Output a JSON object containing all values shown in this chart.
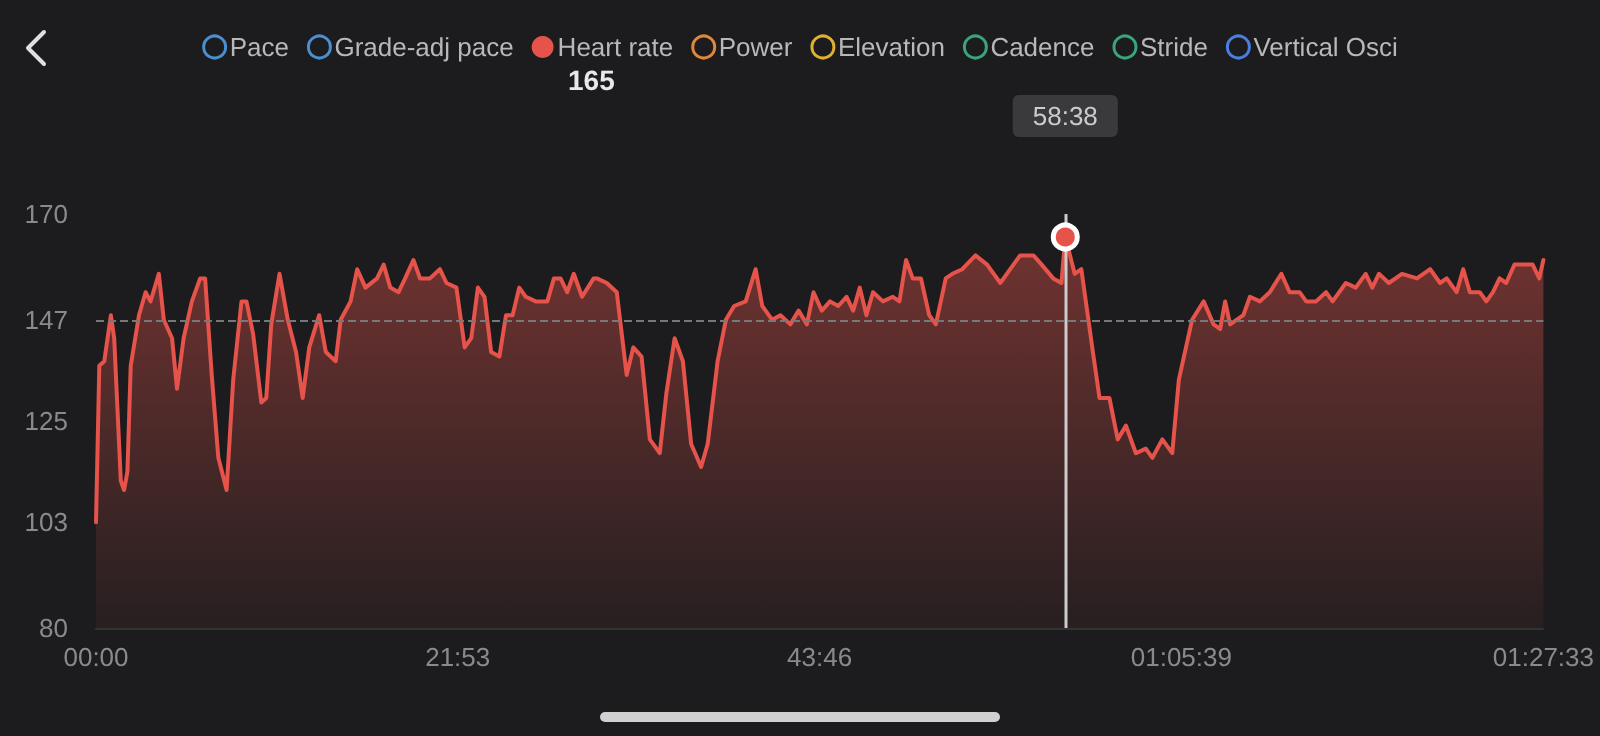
{
  "chart_data": {
    "type": "area",
    "x": [
      0,
      0.2,
      0.5,
      0.9,
      1.1,
      1.5,
      1.7,
      1.9,
      2.1,
      2.6,
      3.0,
      3.3,
      3.8,
      4.1,
      4.6,
      4.9,
      5.3,
      5.8,
      6.3,
      6.6,
      7.0,
      7.4,
      7.9,
      8.3,
      8.8,
      9.1,
      9.5,
      10.0,
      10.3,
      10.6,
      11.1,
      11.6,
      12.1,
      12.5,
      12.9,
      13.5,
      13.9,
      14.5,
      14.8,
      15.4,
      15.8,
      16.3,
      17.0,
      17.4,
      17.8,
      18.3,
      18.7,
      19.2,
      19.6,
      20.2,
      20.8,
      21.2,
      21.8,
      22.3,
      22.7,
      23.1,
      23.5,
      23.9,
      24.4,
      24.8,
      25.2,
      25.6,
      26.0,
      26.6,
      27.3,
      27.7,
      28.1,
      28.5,
      28.9,
      29.4,
      30.1,
      30.3,
      30.9,
      31.5,
      32.1,
      32.5,
      33.0,
      33.5,
      34.1,
      34.5,
      35.0,
      35.5,
      36.0,
      36.6,
      37.0,
      37.6,
      38.1,
      38.6,
      39.3,
      39.9,
      40.3,
      40.9,
      41.4,
      42.0,
      42.5,
      43.0,
      43.4,
      43.9,
      44.4,
      44.9,
      45.4,
      45.8,
      46.2,
      46.6,
      47.0,
      47.6,
      48.2,
      48.6,
      49.0,
      49.4,
      49.9,
      50.4,
      50.8,
      51.4,
      51.8,
      52.4,
      53.2,
      53.9,
      54.7,
      55.3,
      55.9,
      56.7,
      57.2,
      57.9,
      58.4,
      58.63,
      59.2,
      59.6,
      60.3,
      60.7,
      61.3,
      61.8,
      62.3,
      62.9,
      63.5,
      63.9,
      64.5,
      65.1,
      65.5,
      66.3,
      67.0,
      67.6,
      68.0,
      68.3,
      68.6,
      69.4,
      69.8,
      70.4,
      71.0,
      71.7,
      72.2,
      72.8,
      73.2,
      73.8,
      74.4,
      74.8,
      75.6,
      76.2,
      76.8,
      77.2,
      77.6,
      78.2,
      79.0,
      79.9,
      80.7,
      81.3,
      81.7,
      82.3,
      82.7,
      83.1,
      83.7,
      84.1,
      84.5,
      84.9,
      85.3,
      85.8,
      86.3,
      86.9,
      87.3,
      87.55
    ],
    "series": [
      {
        "name": "Pace",
        "color": "#4a8fcf",
        "values": [
          null,
          null,
          null,
          null,
          null,
          null,
          null,
          null,
          null,
          null,
          null,
          null,
          null,
          null,
          null,
          null,
          null,
          null,
          null,
          null,
          null,
          null,
          null,
          null,
          null,
          null,
          null,
          null,
          null,
          null,
          null,
          null,
          null,
          null,
          null,
          null,
          null,
          null,
          null,
          null,
          null,
          null,
          null,
          null,
          null,
          null,
          null,
          null,
          null,
          null,
          null,
          null,
          null,
          null,
          null,
          null,
          null,
          null,
          null,
          null,
          null,
          null,
          null,
          null,
          null,
          null,
          null,
          null,
          null,
          null,
          null,
          null,
          null,
          null,
          null,
          null,
          null,
          null,
          null,
          null,
          null,
          null,
          null,
          null,
          null,
          null,
          null,
          null,
          null,
          null,
          null,
          null,
          null,
          null,
          null,
          null,
          null,
          null,
          null,
          null,
          null,
          null,
          null,
          null,
          null,
          null,
          null,
          null,
          null,
          null,
          null,
          null,
          null,
          null,
          null,
          null,
          null,
          null,
          null,
          null,
          null,
          null,
          null,
          null,
          null,
          null,
          null,
          null,
          null,
          null,
          null,
          null,
          null,
          null,
          null,
          null,
          null,
          null,
          null,
          null,
          null,
          null,
          null,
          null,
          null,
          null,
          null,
          null,
          null,
          null,
          null,
          null,
          null,
          null,
          null,
          null,
          null,
          null,
          null,
          null,
          null,
          null,
          null,
          null,
          null,
          null,
          null,
          null,
          null,
          null,
          null,
          null,
          null,
          null,
          null,
          null,
          null,
          null,
          null,
          null
        ]
      },
      {
        "name": "Grade-adj pace",
        "color": "#4a8fcf",
        "values": [
          null,
          null,
          null,
          null,
          null,
          null,
          null,
          null,
          null,
          null,
          null,
          null,
          null,
          null,
          null,
          null,
          null,
          null,
          null,
          null,
          null,
          null,
          null,
          null,
          null,
          null,
          null,
          null,
          null,
          null,
          null,
          null,
          null,
          null,
          null,
          null,
          null,
          null,
          null,
          null,
          null,
          null,
          null,
          null,
          null,
          null,
          null,
          null,
          null,
          null,
          null,
          null,
          null,
          null,
          null,
          null,
          null,
          null,
          null,
          null,
          null,
          null,
          null,
          null,
          null,
          null,
          null,
          null,
          null,
          null,
          null,
          null,
          null,
          null,
          null,
          null,
          null,
          null,
          null,
          null,
          null,
          null,
          null,
          null,
          null,
          null,
          null,
          null,
          null,
          null,
          null,
          null,
          null,
          null,
          null,
          null,
          null,
          null,
          null,
          null,
          null,
          null,
          null,
          null,
          null,
          null,
          null,
          null,
          null,
          null,
          null,
          null,
          null,
          null,
          null,
          null,
          null,
          null,
          null,
          null,
          null,
          null,
          null,
          null,
          null,
          null,
          null,
          null,
          null,
          null,
          null,
          null,
          null,
          null,
          null,
          null,
          null,
          null,
          null,
          null,
          null,
          null,
          null,
          null,
          null,
          null,
          null,
          null,
          null,
          null,
          null,
          null,
          null,
          null,
          null,
          null,
          null,
          null,
          null,
          null,
          null,
          null,
          null,
          null,
          null,
          null,
          null,
          null,
          null,
          null,
          null,
          null,
          null,
          null,
          null,
          null,
          null,
          null,
          null,
          null
        ]
      },
      {
        "name": "Heart rate",
        "color": "#e5534b",
        "values": [
          103,
          137,
          138,
          148,
          143,
          112,
          110,
          114,
          137,
          148,
          153,
          151,
          157,
          147,
          143,
          132,
          143,
          151,
          156,
          156,
          135,
          117,
          110,
          134,
          151,
          151,
          144,
          129,
          130,
          146,
          157,
          147,
          140,
          130,
          141,
          148,
          140,
          138,
          147,
          151,
          158,
          154,
          156,
          159,
          154,
          153,
          156,
          160,
          156,
          156,
          158,
          155,
          154,
          141,
          143,
          154,
          152,
          140,
          139,
          148,
          148,
          154,
          152,
          151,
          151,
          156,
          156,
          153,
          157,
          152,
          156,
          156,
          155,
          153,
          135,
          141,
          139,
          121,
          118,
          131,
          143,
          138,
          120,
          115,
          120,
          138,
          147,
          150,
          151,
          158,
          150,
          147,
          148,
          146,
          149,
          146,
          153,
          149,
          151,
          150,
          152,
          149,
          154,
          148,
          153,
          151,
          152,
          151,
          160,
          156,
          156,
          148,
          146,
          156,
          157,
          158,
          161,
          159,
          155,
          158,
          161,
          161,
          159,
          156,
          155,
          165,
          157,
          158,
          140,
          130,
          130,
          121,
          124,
          118,
          119,
          117,
          121,
          118,
          134,
          147,
          151,
          146,
          145,
          151,
          146,
          148,
          152,
          151,
          153,
          157,
          153,
          153,
          151,
          151,
          153,
          151,
          155,
          154,
          157,
          154,
          157,
          155,
          157,
          156,
          158,
          155,
          156,
          153,
          158,
          153,
          153,
          151,
          153,
          156,
          155,
          159,
          159,
          159,
          156,
          160
        ]
      },
      {
        "name": "Power",
        "color": "#e0883a",
        "values": [
          null,
          null,
          null,
          null,
          null,
          null,
          null,
          null,
          null,
          null,
          null,
          null,
          null,
          null,
          null,
          null,
          null,
          null,
          null,
          null,
          null,
          null,
          null,
          null,
          null,
          null,
          null,
          null,
          null,
          null,
          null,
          null,
          null,
          null,
          null,
          null,
          null,
          null,
          null,
          null,
          null,
          null,
          null,
          null,
          null,
          null,
          null,
          null,
          null,
          null,
          null,
          null,
          null,
          null,
          null,
          null,
          null,
          null,
          null,
          null,
          null,
          null,
          null,
          null,
          null,
          null,
          null,
          null,
          null,
          null,
          null,
          null,
          null,
          null,
          null,
          null,
          null,
          null,
          null,
          null,
          null,
          null,
          null,
          null,
          null,
          null,
          null,
          null,
          null,
          null,
          null,
          null,
          null,
          null,
          null,
          null,
          null,
          null,
          null,
          null,
          null,
          null,
          null,
          null,
          null,
          null,
          null,
          null,
          null,
          null,
          null,
          null,
          null,
          null,
          null,
          null,
          null,
          null,
          null,
          null,
          null,
          null,
          null,
          null,
          null,
          null,
          null,
          null,
          null,
          null,
          null,
          null,
          null,
          null,
          null,
          null,
          null,
          null,
          null,
          null,
          null,
          null,
          null,
          null,
          null,
          null,
          null,
          null,
          null,
          null,
          null,
          null,
          null,
          null,
          null,
          null,
          null,
          null,
          null,
          null,
          null,
          null,
          null,
          null,
          null,
          null,
          null,
          null,
          null,
          null,
          null,
          null,
          null,
          null,
          null,
          null,
          null,
          null,
          null,
          null
        ]
      },
      {
        "name": "Elevation",
        "color": "#e0b030",
        "values": [
          null,
          null,
          null,
          null,
          null,
          null,
          null,
          null,
          null,
          null,
          null,
          null,
          null,
          null,
          null,
          null,
          null,
          null,
          null,
          null,
          null,
          null,
          null,
          null,
          null,
          null,
          null,
          null,
          null,
          null,
          null,
          null,
          null,
          null,
          null,
          null,
          null,
          null,
          null,
          null,
          null,
          null,
          null,
          null,
          null,
          null,
          null,
          null,
          null,
          null,
          null,
          null,
          null,
          null,
          null,
          null,
          null,
          null,
          null,
          null,
          null,
          null,
          null,
          null,
          null,
          null,
          null,
          null,
          null,
          null,
          null,
          null,
          null,
          null,
          null,
          null,
          null,
          null,
          null,
          null,
          null,
          null,
          null,
          null,
          null,
          null,
          null,
          null,
          null,
          null,
          null,
          null,
          null,
          null,
          null,
          null,
          null,
          null,
          null,
          null,
          null,
          null,
          null,
          null,
          null,
          null,
          null,
          null,
          null,
          null,
          null,
          null,
          null,
          null,
          null,
          null,
          null,
          null,
          null,
          null,
          null,
          null,
          null,
          null,
          null,
          null,
          null,
          null,
          null,
          null,
          null,
          null,
          null,
          null,
          null,
          null,
          null,
          null,
          null,
          null,
          null,
          null,
          null,
          null,
          null,
          null,
          null,
          null,
          null,
          null,
          null,
          null,
          null,
          null,
          null,
          null,
          null,
          null,
          null,
          null,
          null,
          null,
          null,
          null,
          null,
          null,
          null,
          null,
          null,
          null,
          null,
          null,
          null,
          null,
          null,
          null,
          null,
          null,
          null,
          null
        ]
      },
      {
        "name": "Cadence",
        "color": "#3aa57a",
        "values": [
          null,
          null,
          null,
          null,
          null,
          null,
          null,
          null,
          null,
          null,
          null,
          null,
          null,
          null,
          null,
          null,
          null,
          null,
          null,
          null,
          null,
          null,
          null,
          null,
          null,
          null,
          null,
          null,
          null,
          null,
          null,
          null,
          null,
          null,
          null,
          null,
          null,
          null,
          null,
          null,
          null,
          null,
          null,
          null,
          null,
          null,
          null,
          null,
          null,
          null,
          null,
          null,
          null,
          null,
          null,
          null,
          null,
          null,
          null,
          null,
          null,
          null,
          null,
          null,
          null,
          null,
          null,
          null,
          null,
          null,
          null,
          null,
          null,
          null,
          null,
          null,
          null,
          null,
          null,
          null,
          null,
          null,
          null,
          null,
          null,
          null,
          null,
          null,
          null,
          null,
          null,
          null,
          null,
          null,
          null,
          null,
          null,
          null,
          null,
          null,
          null,
          null,
          null,
          null,
          null,
          null,
          null,
          null,
          null,
          null,
          null,
          null,
          null,
          null,
          null,
          null,
          null,
          null,
          null,
          null,
          null,
          null,
          null,
          null,
          null,
          null,
          null,
          null,
          null,
          null,
          null,
          null,
          null,
          null,
          null,
          null,
          null,
          null,
          null,
          null,
          null,
          null,
          null,
          null,
          null,
          null,
          null,
          null,
          null,
          null,
          null,
          null,
          null,
          null,
          null,
          null,
          null,
          null,
          null,
          null,
          null,
          null,
          null,
          null,
          null,
          null,
          null,
          null,
          null,
          null,
          null,
          null,
          null,
          null,
          null,
          null,
          null,
          null,
          null,
          null
        ]
      },
      {
        "name": "Stride",
        "color": "#3aa57a",
        "values": [
          null,
          null,
          null,
          null,
          null,
          null,
          null,
          null,
          null,
          null,
          null,
          null,
          null,
          null,
          null,
          null,
          null,
          null,
          null,
          null,
          null,
          null,
          null,
          null,
          null,
          null,
          null,
          null,
          null,
          null,
          null,
          null,
          null,
          null,
          null,
          null,
          null,
          null,
          null,
          null,
          null,
          null,
          null,
          null,
          null,
          null,
          null,
          null,
          null,
          null,
          null,
          null,
          null,
          null,
          null,
          null,
          null,
          null,
          null,
          null,
          null,
          null,
          null,
          null,
          null,
          null,
          null,
          null,
          null,
          null,
          null,
          null,
          null,
          null,
          null,
          null,
          null,
          null,
          null,
          null,
          null,
          null,
          null,
          null,
          null,
          null,
          null,
          null,
          null,
          null,
          null,
          null,
          null,
          null,
          null,
          null,
          null,
          null,
          null,
          null,
          null,
          null,
          null,
          null,
          null,
          null,
          null,
          null,
          null,
          null,
          null,
          null,
          null,
          null,
          null,
          null,
          null,
          null,
          null,
          null,
          null,
          null,
          null,
          null,
          null,
          null,
          null,
          null,
          null,
          null,
          null,
          null,
          null,
          null,
          null,
          null,
          null,
          null,
          null,
          null,
          null,
          null,
          null,
          null,
          null,
          null,
          null,
          null,
          null,
          null,
          null,
          null,
          null,
          null,
          null,
          null,
          null,
          null,
          null,
          null,
          null,
          null,
          null,
          null,
          null,
          null,
          null,
          null,
          null,
          null,
          null,
          null,
          null,
          null,
          null,
          null,
          null,
          null,
          null,
          null
        ]
      },
      {
        "name": "Vertical Osci",
        "color": "#4a7fe0",
        "values": [
          null,
          null,
          null,
          null,
          null,
          null,
          null,
          null,
          null,
          null,
          null,
          null,
          null,
          null,
          null,
          null,
          null,
          null,
          null,
          null,
          null,
          null,
          null,
          null,
          null,
          null,
          null,
          null,
          null,
          null,
          null,
          null,
          null,
          null,
          null,
          null,
          null,
          null,
          null,
          null,
          null,
          null,
          null,
          null,
          null,
          null,
          null,
          null,
          null,
          null,
          null,
          null,
          null,
          null,
          null,
          null,
          null,
          null,
          null,
          null,
          null,
          null,
          null,
          null,
          null,
          null,
          null,
          null,
          null,
          null,
          null,
          null,
          null,
          null,
          null,
          null,
          null,
          null,
          null,
          null,
          null,
          null,
          null,
          null,
          null,
          null,
          null,
          null,
          null,
          null,
          null,
          null,
          null,
          null,
          null,
          null,
          null,
          null,
          null,
          null,
          null,
          null,
          null,
          null,
          null,
          null,
          null,
          null,
          null,
          null,
          null,
          null,
          null,
          null,
          null,
          null,
          null,
          null,
          null,
          null,
          null,
          null,
          null,
          null,
          null,
          null,
          null,
          null,
          null,
          null,
          null,
          null,
          null,
          null,
          null,
          null,
          null,
          null,
          null,
          null,
          null,
          null,
          null,
          null,
          null,
          null,
          null,
          null,
          null,
          null,
          null,
          null,
          null,
          null,
          null,
          null,
          null,
          null,
          null,
          null,
          null,
          null,
          null,
          null,
          null,
          null,
          null,
          null,
          null,
          null,
          null,
          null,
          null,
          null,
          null,
          null,
          null,
          null,
          null,
          null
        ]
      }
    ],
    "xlim": [
      0,
      87.55
    ],
    "xticks": [
      {
        "value": 0,
        "label": "00:00"
      },
      {
        "value": 21.88,
        "label": "21:53"
      },
      {
        "value": 43.77,
        "label": "43:46"
      },
      {
        "value": 65.65,
        "label": "01:05:39"
      },
      {
        "value": 87.55,
        "label": "01:27:33"
      }
    ],
    "ylim": [
      80,
      170
    ],
    "yticks": [
      80,
      103,
      125,
      147,
      170
    ],
    "grid": false,
    "legend": "top",
    "marker": "none",
    "line_style": "solid",
    "ref_lines": [
      {
        "axis": "y",
        "value": 147,
        "label": null,
        "color": "#777777",
        "line_style": "dashed"
      },
      {
        "axis": "x",
        "value": 58.63,
        "label": null,
        "color": "#cccccc",
        "line_style": "solid"
      }
    ],
    "annotations": [
      "165",
      "58:38"
    ]
  }
}
